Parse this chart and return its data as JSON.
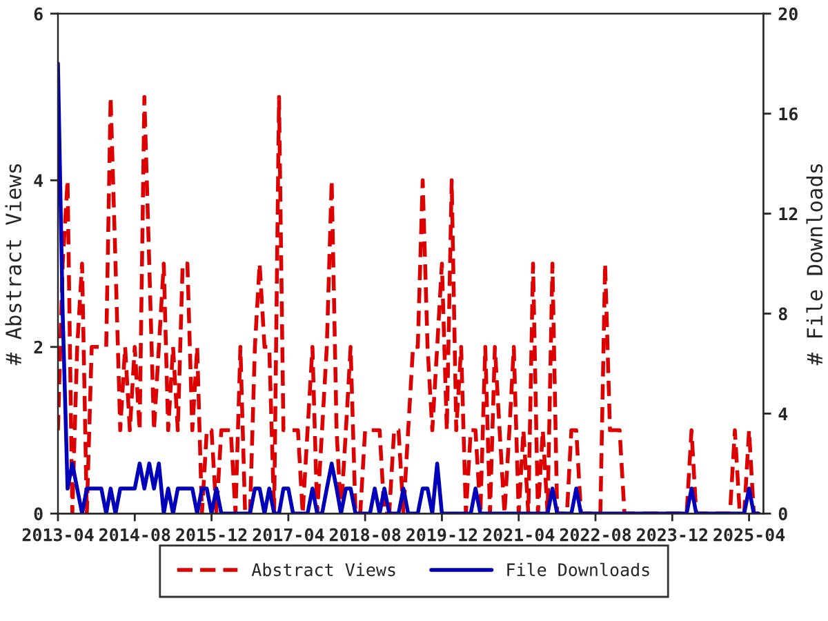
{
  "chart_data": {
    "type": "line",
    "xlabel": null,
    "ylabel": "# Abstract Views",
    "y2label": "# File Downloads",
    "x": [
      "2013-04",
      "2013-05",
      "2013-06",
      "2013-07",
      "2013-08",
      "2013-09",
      "2013-10",
      "2013-11",
      "2013-12",
      "2014-01",
      "2014-02",
      "2014-03",
      "2014-04",
      "2014-05",
      "2014-06",
      "2014-07",
      "2014-08",
      "2014-09",
      "2014-10",
      "2014-11",
      "2014-12",
      "2015-01",
      "2015-02",
      "2015-03",
      "2015-04",
      "2015-05",
      "2015-06",
      "2015-07",
      "2015-08",
      "2015-09",
      "2015-10",
      "2015-11",
      "2015-12",
      "2016-01",
      "2016-02",
      "2016-03",
      "2016-04",
      "2016-05",
      "2016-06",
      "2016-07",
      "2016-08",
      "2016-09",
      "2016-10",
      "2016-11",
      "2016-12",
      "2017-01",
      "2017-02",
      "2017-03",
      "2017-04",
      "2017-05",
      "2017-06",
      "2017-07",
      "2017-08",
      "2017-09",
      "2017-10",
      "2017-11",
      "2017-12",
      "2018-01",
      "2018-02",
      "2018-03",
      "2018-04",
      "2018-05",
      "2018-06",
      "2018-07",
      "2018-08",
      "2018-09",
      "2018-10",
      "2018-11",
      "2018-12",
      "2019-01",
      "2019-02",
      "2019-03",
      "2019-04",
      "2019-05",
      "2019-06",
      "2019-07",
      "2019-08",
      "2019-09",
      "2019-10",
      "2019-11",
      "2019-12",
      "2020-01",
      "2020-02",
      "2020-03",
      "2020-04",
      "2020-05",
      "2020-06",
      "2020-07",
      "2020-08",
      "2020-09",
      "2020-10",
      "2020-11",
      "2020-12",
      "2021-01",
      "2021-02",
      "2021-03",
      "2021-04",
      "2021-05",
      "2021-06",
      "2021-07",
      "2021-08",
      "2021-09",
      "2021-10",
      "2021-11",
      "2021-12",
      "2022-01",
      "2022-02",
      "2022-03",
      "2022-04",
      "2022-05",
      "2022-06",
      "2022-07",
      "2022-08",
      "2022-09",
      "2022-10",
      "2022-11",
      "2022-12",
      "2023-01",
      "2023-02",
      "2023-03",
      "2023-04",
      "2023-05",
      "2023-06",
      "2023-07",
      "2023-08",
      "2023-09",
      "2023-10",
      "2023-11",
      "2023-12",
      "2024-01",
      "2024-02",
      "2024-03",
      "2024-04",
      "2024-05",
      "2024-06",
      "2024-07",
      "2024-08",
      "2024-09",
      "2024-10",
      "2024-11",
      "2024-12",
      "2025-01",
      "2025-02",
      "2025-03",
      "2025-04",
      "2025-05",
      "2025-06"
    ],
    "series": [
      {
        "name": "Abstract Views",
        "color": "#dd0000",
        "line_style": "dashed",
        "values": [
          1,
          3,
          4,
          0,
          2,
          3,
          0,
          2,
          2,
          2,
          2,
          5,
          3,
          1,
          2,
          1,
          2,
          1,
          5,
          3,
          1,
          2,
          3,
          1,
          2,
          1,
          3,
          3,
          1,
          2,
          0,
          1,
          1,
          0,
          1,
          1,
          1,
          0,
          2,
          0,
          0,
          2,
          3,
          2,
          2,
          0,
          5,
          1,
          1,
          1,
          1,
          0,
          1,
          2,
          0,
          1,
          2,
          4,
          1,
          0,
          1,
          2,
          0,
          0,
          1,
          1,
          1,
          1,
          0,
          0,
          1,
          1,
          0,
          1,
          2,
          2,
          4,
          2,
          1,
          2,
          3,
          1,
          4,
          1,
          2,
          0,
          1,
          1,
          0,
          2,
          0,
          2,
          1,
          0,
          1,
          2,
          0,
          1,
          0,
          3,
          0,
          1,
          0,
          3,
          0,
          0,
          0,
          1,
          1,
          0,
          0,
          0,
          0,
          0,
          3,
          1,
          1,
          1,
          0,
          0,
          0,
          0,
          0,
          0,
          0,
          0,
          0,
          0,
          0,
          0,
          0,
          0,
          1,
          0,
          0,
          0,
          0,
          0,
          0,
          0,
          0,
          1,
          0,
          0,
          1,
          0,
          0
        ]
      },
      {
        "name": "File Downloads",
        "color": "#0000bb",
        "line_style": "solid",
        "axis": "y2",
        "values": [
          18,
          8,
          1,
          2,
          1,
          0,
          1,
          1,
          1,
          1,
          0,
          1,
          0,
          1,
          1,
          1,
          1,
          2,
          1,
          2,
          1,
          2,
          0,
          1,
          0,
          1,
          1,
          1,
          1,
          0,
          1,
          1,
          0,
          1,
          0,
          0,
          0,
          0,
          0,
          0,
          0,
          1,
          1,
          0,
          1,
          0,
          0,
          1,
          1,
          0,
          0,
          0,
          0,
          1,
          0,
          0,
          1,
          2,
          1,
          0,
          1,
          1,
          0,
          0,
          0,
          0,
          1,
          0,
          1,
          0,
          0,
          0,
          1,
          0,
          0,
          0,
          1,
          1,
          0,
          2,
          0,
          0,
          0,
          0,
          0,
          0,
          0,
          1,
          0,
          0,
          0,
          0,
          0,
          0,
          0,
          0,
          0,
          0,
          0,
          0,
          0,
          0,
          0,
          1,
          0,
          0,
          0,
          0,
          1,
          0,
          0,
          0,
          0,
          0,
          0,
          0,
          0,
          0,
          0,
          0,
          0,
          0,
          0,
          0,
          0,
          0,
          0,
          0,
          0,
          0,
          0,
          0,
          1,
          0,
          0,
          0,
          0,
          0,
          0,
          0,
          0,
          0,
          0,
          0,
          1,
          0,
          0
        ]
      }
    ],
    "xlim": [
      "2013-04",
      "2025-07"
    ],
    "xticks": [
      "2013-04",
      "2014-08",
      "2015-12",
      "2017-04",
      "2018-08",
      "2019-12",
      "2021-04",
      "2022-08",
      "2023-12",
      "2025-04"
    ],
    "ylim": [
      0,
      6
    ],
    "yticks": [
      0,
      2,
      4,
      6
    ],
    "y2lim": [
      0,
      20
    ],
    "y2ticks": [
      0,
      4,
      8,
      12,
      16,
      20
    ],
    "grid": false,
    "legend": "bottom",
    "marker": "none"
  }
}
